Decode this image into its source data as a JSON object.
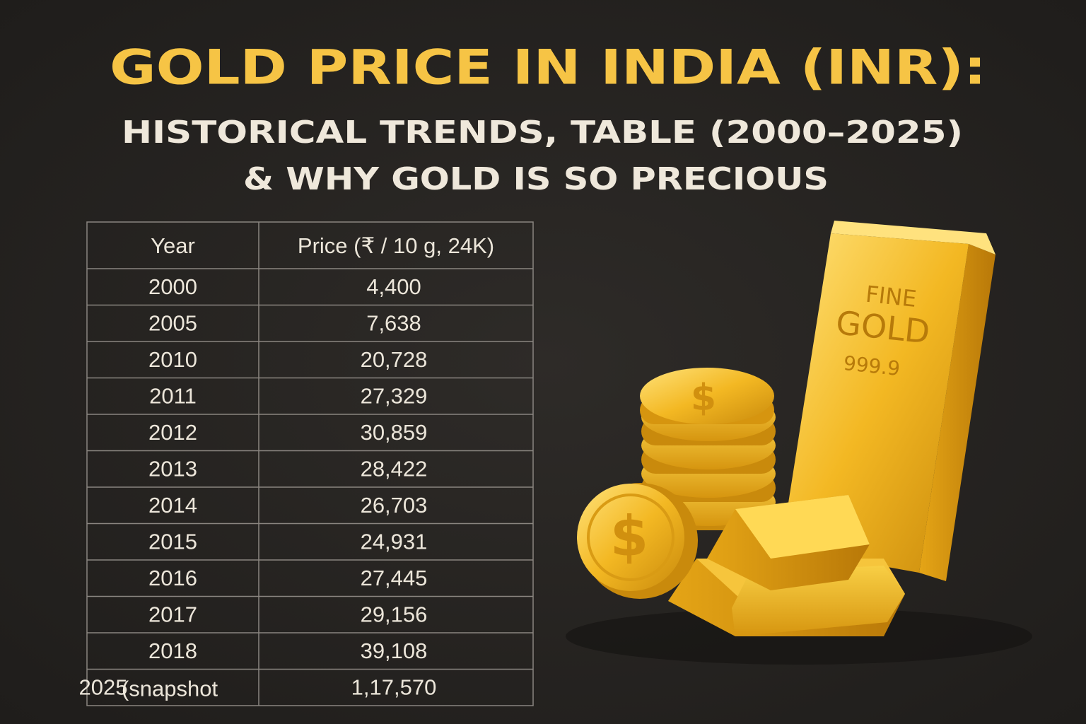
{
  "header": {
    "title": "GOLD PRICE IN INDIA (INR):",
    "subtitle_line1": "HISTORICAL TRENDS, TABLE (2000–2025)",
    "subtitle_line2": "& WHY GOLD IS SO PRECIOUS"
  },
  "table": {
    "columns": [
      "Year",
      "Price (₹ / 10 g, 24K)"
    ],
    "rows": [
      {
        "year": "2000",
        "price": "4,400"
      },
      {
        "year": "2005",
        "price": "7,638"
      },
      {
        "year": "2010",
        "price": "20,728"
      },
      {
        "year": "2011",
        "price": "27,329"
      },
      {
        "year": "2012",
        "price": "30,859"
      },
      {
        "year": "2013",
        "price": "28,422"
      },
      {
        "year": "2014",
        "price": "26,703"
      },
      {
        "year": "2015",
        "price": "24,931"
      },
      {
        "year": "2016",
        "price": "27,445"
      },
      {
        "year": "2017",
        "price": "29,156"
      },
      {
        "year": "2018",
        "price": "39,108"
      },
      {
        "year": "2025",
        "note": "(snapshot",
        "price": "1,17,570"
      }
    ]
  },
  "illustration": {
    "bar_line1": "FINE",
    "bar_line2": "GOLD",
    "bar_line3": "999.9",
    "coin_symbol": "$"
  }
}
